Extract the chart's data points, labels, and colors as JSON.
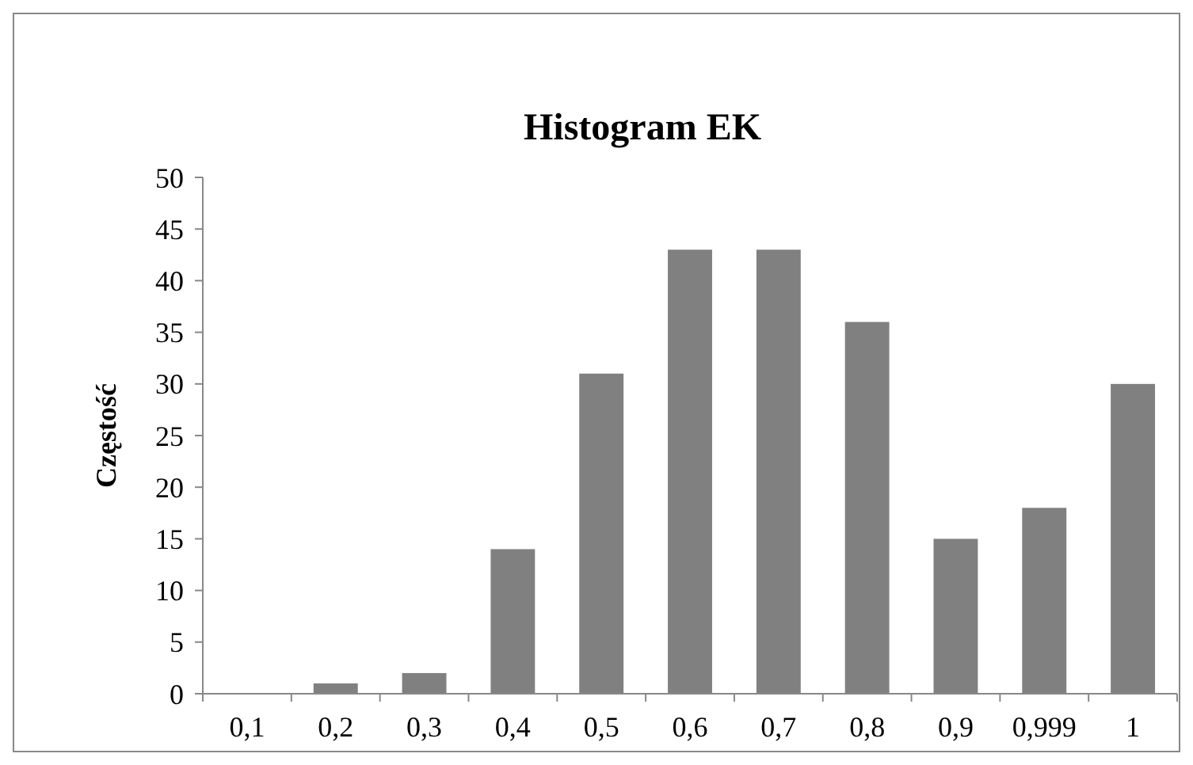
{
  "chart_data": {
    "type": "bar",
    "title": "Histogram EK",
    "ylabel": "Częstość",
    "categories": [
      "0,1",
      "0,2",
      "0,3",
      "0,4",
      "0,5",
      "0,6",
      "0,7",
      "0,8",
      "0,9",
      "0,999",
      "1"
    ],
    "values": [
      0,
      1,
      2,
      14,
      31,
      43,
      43,
      36,
      15,
      18,
      30
    ],
    "color": "#808080",
    "ylim": [
      0,
      50
    ],
    "yticks": [
      0,
      5,
      10,
      15,
      20,
      25,
      30,
      35,
      40,
      45,
      50
    ]
  }
}
